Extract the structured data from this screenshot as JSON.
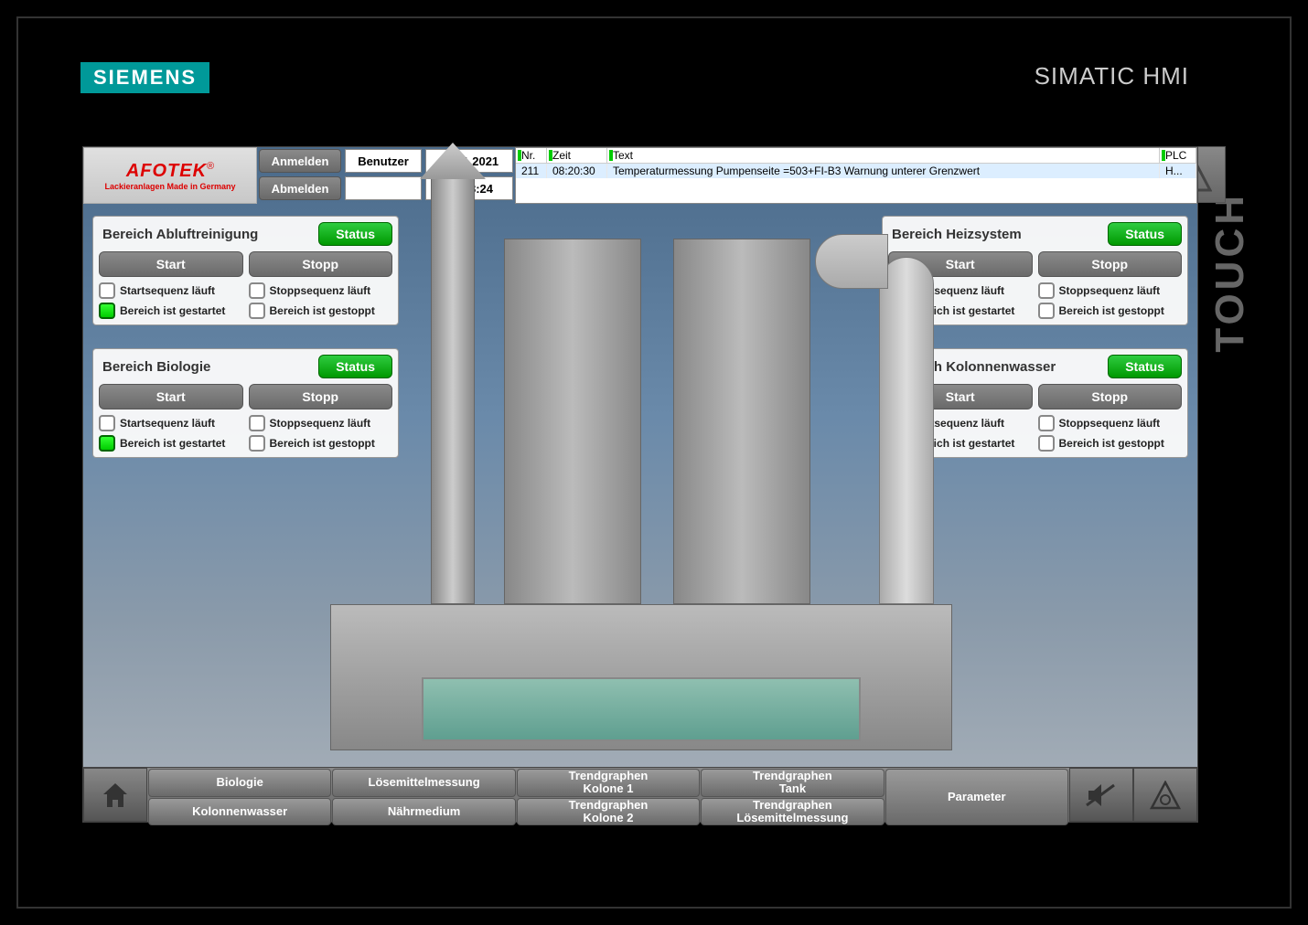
{
  "brand": {
    "siemens": "SIEMENS",
    "hmi": "SIMATIC HMI",
    "touch": "TOUCH"
  },
  "logo": {
    "name": "AFOTEK",
    "sub": "Lackieranlagen Made in Germany",
    "reg": "®"
  },
  "header": {
    "login": "Anmelden",
    "logout": "Abmelden",
    "user_label": "Benutzer",
    "user_value": "",
    "date": "01.11.2021",
    "time": "08:28:24"
  },
  "alarms": {
    "cols": {
      "nr": "Nr.",
      "zeit": "Zeit",
      "text": "Text",
      "plc": "PLC"
    },
    "row": {
      "nr": "211",
      "zeit": "08:20:30",
      "text": "Temperaturmessung  Pumpenseite =503+FI-B3 Warnung unterer Grenzwert",
      "plc": "H..."
    }
  },
  "labels": {
    "status": "Status",
    "start": "Start",
    "stopp": "Stopp",
    "seq_start": "Startsequenz läuft",
    "seq_stop": "Stoppsequenz läuft",
    "started": "Bereich ist gestartet",
    "stopped": "Bereich ist gestoppt"
  },
  "panels": [
    {
      "title": "Bereich Abluftreinigung",
      "key": "abluft",
      "started": true
    },
    {
      "title": "Bereich Biologie",
      "key": "biologie",
      "started": true
    },
    {
      "title": "Bereich Heizsystem",
      "key": "heiz",
      "started": true
    },
    {
      "title": "Bereich Kolonnenwasser",
      "key": "kolonnen",
      "started": true
    }
  ],
  "nav": {
    "row1": [
      "Biologie",
      "Lösemittelmessung",
      "Trendgraphen\nKolone 1",
      "Trendgraphen\nTank"
    ],
    "row2": [
      "Kolonnenwasser",
      "Nährmedium",
      "Trendgraphen\nKolone 2",
      "Trendgraphen\nLösemittelmessung"
    ],
    "parameter": "Parameter"
  },
  "colors": {
    "status_on": "#1ec41e",
    "siemens": "#009999",
    "alarm_row": "#dceeff",
    "panel_bg": "#fafafa",
    "button": "#7a7a7a"
  }
}
